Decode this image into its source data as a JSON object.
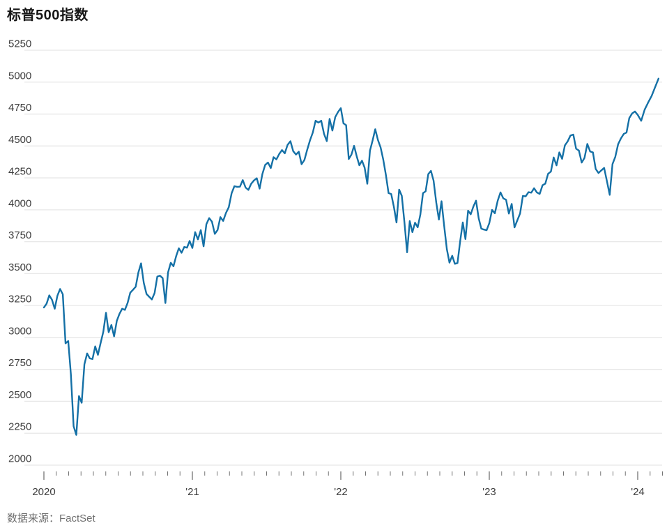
{
  "title_text": "标普500指数",
  "source_text": "数据来源：FactSet",
  "colors": {
    "line": "#1470a6",
    "grid": "#e7e7e7",
    "tick": "#747474",
    "axis_label": "#3d3d3d",
    "title": "#161616",
    "source": "#6f6f6f",
    "background": "#ffffff"
  },
  "chart_data": {
    "type": "line",
    "title": "标普500指数",
    "source": "数据来源：FactSet",
    "xlabel": "",
    "ylabel": "",
    "ylim": [
      2000,
      5250
    ],
    "ytick_interval": 250,
    "yticks": [
      5250,
      5000,
      4750,
      4500,
      4250,
      4000,
      3750,
      3500,
      3250,
      3000,
      2750,
      2500,
      2250,
      2000
    ],
    "xtick_years": [
      2020,
      2021,
      2022,
      2023,
      2024
    ],
    "xtick_labels": [
      "2020",
      "'21",
      "'22",
      "'23",
      "'24"
    ],
    "minor_xticks": "monthly",
    "grid": "horizontal",
    "legend": "none",
    "series": [
      {
        "name": "标普500指数 (S&P 500)",
        "unit": "index level",
        "sampling": "weekly closes, Jan 2020 – Feb 2024",
        "groups": [
          {
            "year": 2020,
            "span": 1,
            "values": [
              3235,
              3265,
              3330,
              3295,
              3225,
              3328,
              3380,
              3338,
              2954,
              2972,
              2711,
              2305,
              2237,
              2541,
              2489,
              2790,
              2875,
              2837,
              2831,
              2930,
              2864,
              2955,
              3044,
              3194,
              3041,
              3098,
              3009,
              3130,
              3185,
              3225,
              3216,
              3271,
              3351,
              3373,
              3397,
              3508,
              3581,
              3427,
              3341,
              3319,
              3298,
              3348,
              3477,
              3484,
              3465,
              3270,
              3509,
              3585,
              3558,
              3638,
              3699,
              3663,
              3709,
              3703,
              3756
            ]
          },
          {
            "year": 2021,
            "span": 1,
            "values": [
              3701,
              3825,
              3768,
              3841,
              3714,
              3887,
              3935,
              3907,
              3811,
              3842,
              3943,
              3913,
              3975,
              4020,
              4129,
              4185,
              4180,
              4181,
              4233,
              4174,
              4156,
              4204,
              4230,
              4247,
              4166,
              4281,
              4352,
              4370,
              4327,
              4412,
              4395,
              4437,
              4468,
              4442,
              4509,
              4537,
              4459,
              4433,
              4455,
              4357,
              4391,
              4471,
              4545,
              4605,
              4698,
              4683,
              4698,
              4595,
              4538,
              4712,
              4621,
              4726,
              4766
            ]
          },
          {
            "year": 2022,
            "span": 1,
            "values": [
              4796,
              4677,
              4663,
              4398,
              4432,
              4501,
              4419,
              4349,
              4385,
              4329,
              4204,
              4463,
              4543,
              4631,
              4546,
              4488,
              4393,
              4272,
              4131,
              4123,
              4024,
              3901,
              4158,
              4109,
              3901,
              3667,
              3912,
              3825,
              3899,
              3863,
              3962,
              4130,
              4145,
              4280,
              4305,
              4228,
              4058,
              3924,
              4067,
              3873,
              3693,
              3586,
              3640,
              3577,
              3583,
              3753,
              3901,
              3771,
              3993,
              3965,
              4026,
              4072,
              3934,
              3852,
              3845,
              3840
            ]
          },
          {
            "year": 2023,
            "span": 1,
            "values": [
              3895,
              3999,
              3973,
              4071,
              4136,
              4090,
              4079,
              3970,
              4046,
              3862,
              3917,
              3971,
              4109,
              4105,
              4138,
              4134,
              4169,
              4136,
              4124,
              4192,
              4205,
              4282,
              4299,
              4410,
              4348,
              4450,
              4399,
              4505,
              4536,
              4582,
              4589,
              4478,
              4464,
              4370,
              4406,
              4516,
              4457,
              4450,
              4320,
              4288,
              4309,
              4328,
              4224,
              4117,
              4358,
              4415,
              4514,
              4559,
              4594,
              4605,
              4719,
              4755,
              4770
            ]
          },
          {
            "year": 2024,
            "span": 0.14,
            "values": [
              4743,
              4697,
              4784,
              4840,
              4891,
              4959,
              5027
            ]
          }
        ]
      }
    ]
  }
}
